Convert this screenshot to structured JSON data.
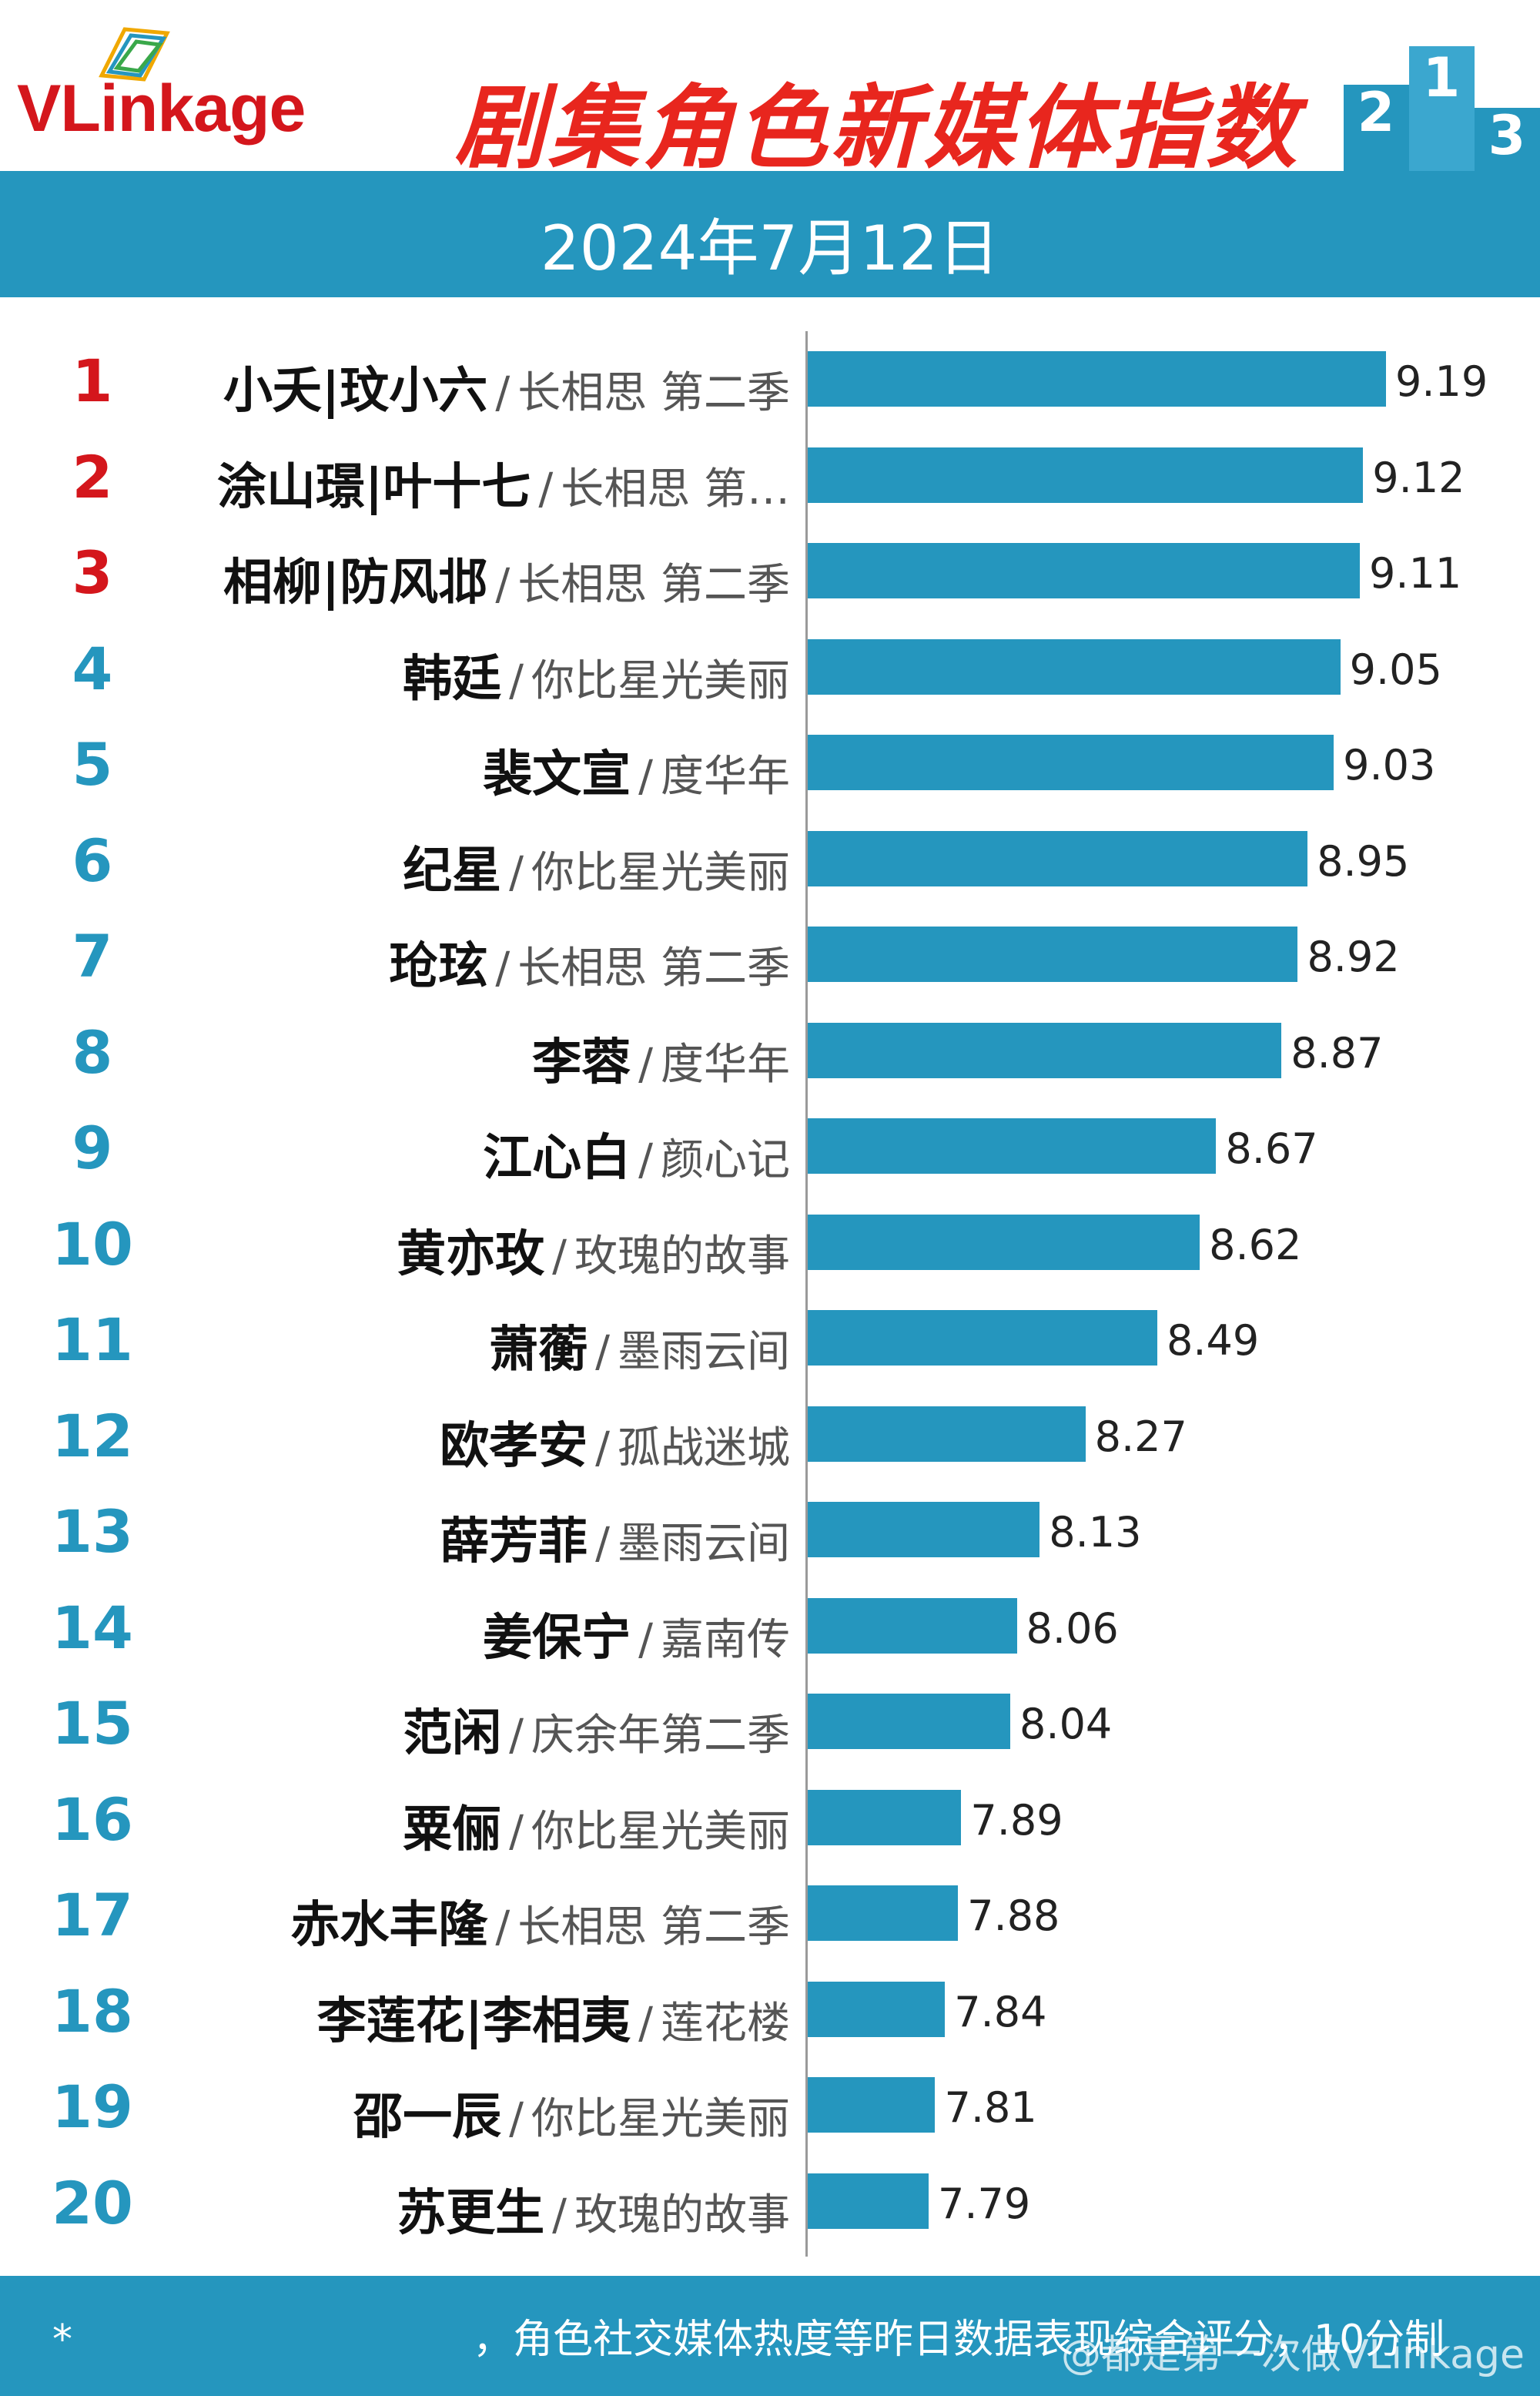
{
  "header": {
    "logo_text": "VLinkage",
    "title": "剧集角色新媒体指数",
    "podium_numbers": [
      "2",
      "1",
      "3"
    ]
  },
  "date": "2024年7月12日",
  "chart_data": {
    "type": "bar",
    "orientation": "horizontal",
    "title": "剧集角色新媒体指数",
    "subtitle": "2024年7月12日",
    "xlim": [
      0,
      10
    ],
    "grid": false,
    "rows": [
      {
        "rank": "1",
        "role": "小夭|玟小六",
        "drama": "长相思 第二季",
        "value": 9.19
      },
      {
        "rank": "2",
        "role": "涂山璟|叶十七",
        "drama": "长相思 第…",
        "value": 9.12
      },
      {
        "rank": "3",
        "role": "相柳|防风邶",
        "drama": "长相思 第二季",
        "value": 9.11
      },
      {
        "rank": "4",
        "role": "韩廷",
        "drama": "你比星光美丽",
        "value": 9.05
      },
      {
        "rank": "5",
        "role": "裴文宣",
        "drama": "度华年",
        "value": 9.03
      },
      {
        "rank": "6",
        "role": "纪星",
        "drama": "你比星光美丽",
        "value": 8.95
      },
      {
        "rank": "7",
        "role": "玱玹",
        "drama": "长相思 第二季",
        "value": 8.92
      },
      {
        "rank": "8",
        "role": "李蓉",
        "drama": "度华年",
        "value": 8.87
      },
      {
        "rank": "9",
        "role": "江心白",
        "drama": "颜心记",
        "value": 8.67
      },
      {
        "rank": "10",
        "role": "黄亦玫",
        "drama": "玫瑰的故事",
        "value": 8.62
      },
      {
        "rank": "11",
        "role": "萧蘅",
        "drama": "墨雨云间",
        "value": 8.49
      },
      {
        "rank": "12",
        "role": "欧孝安",
        "drama": "孤战迷城",
        "value": 8.27
      },
      {
        "rank": "13",
        "role": "薛芳菲",
        "drama": "墨雨云间",
        "value": 8.13
      },
      {
        "rank": "14",
        "role": "姜保宁",
        "drama": "嘉南传",
        "value": 8.06
      },
      {
        "rank": "15",
        "role": "范闲",
        "drama": "庆余年第二季",
        "value": 8.04
      },
      {
        "rank": "16",
        "role": "粟俪",
        "drama": "你比星光美丽",
        "value": 7.89
      },
      {
        "rank": "17",
        "role": "赤水丰隆",
        "drama": "长相思 第二季",
        "value": 7.88
      },
      {
        "rank": "18",
        "role": "李莲花|李相夷",
        "drama": "莲花楼",
        "value": 7.84
      },
      {
        "rank": "19",
        "role": "邵一辰",
        "drama": "你比星光美丽",
        "value": 7.81
      },
      {
        "rank": "20",
        "role": "苏更生",
        "drama": "玫瑰的故事",
        "value": 7.79
      }
    ],
    "separator": "/",
    "colors": {
      "bar": "#2596be",
      "top_rank": "#d4161c",
      "rank": "#2596be"
    }
  },
  "footer": {
    "note": "*　　　　　　　　　　，角色社交媒体热度等昨日数据表现综合评分，10分制",
    "watermark": "@都是第一次做VLinkage"
  }
}
